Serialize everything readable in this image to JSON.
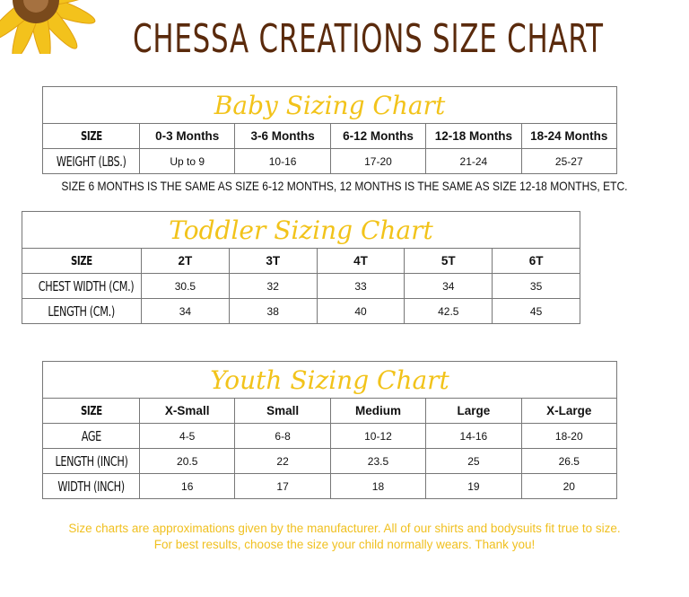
{
  "title": "CHESSA CREATIONS SIZE CHART",
  "tables": [
    {
      "caption": "Baby Sizing Chart",
      "rows": [
        [
          "SIZE",
          "0-3 Months",
          "3-6 Months",
          "6-12 Months",
          "12-18 Months",
          "18-24 Months"
        ],
        [
          "WEIGHT (LBS.)",
          "Up to 9",
          "10-16",
          "17-20",
          "21-24",
          "25-27"
        ]
      ]
    },
    {
      "caption": "Toddler Sizing Chart",
      "rows": [
        [
          "SIZE",
          "2T",
          "3T",
          "4T",
          "5T",
          "6T"
        ],
        [
          "CHEST WIDTH (CM.)",
          "30.5",
          "32",
          "33",
          "34",
          "35"
        ],
        [
          "LENGTH (CM.)",
          "34",
          "38",
          "40",
          "42.5",
          "45"
        ]
      ]
    },
    {
      "caption": "Youth Sizing Chart",
      "rows": [
        [
          "SIZE",
          "X-Small",
          "Small",
          "Medium",
          "Large",
          "X-Large"
        ],
        [
          "AGE",
          "4-5",
          "6-8",
          "10-12",
          "14-16",
          "18-20"
        ],
        [
          "LENGTH (INCH)",
          "20.5",
          "22",
          "23.5",
          "25",
          "26.5"
        ],
        [
          "WIDTH (INCH)",
          "16",
          "17",
          "18",
          "19",
          "20"
        ]
      ]
    }
  ],
  "note": "SIZE 6 MONTHS IS THE SAME AS SIZE 6-12 MONTHS, 12 MONTHS IS THE SAME AS SIZE 12-18 MONTHS, ETC.",
  "footer": [
    "Size charts are approximations given by the manufacturer. All of our shirts and bodysuits fit true to size.",
    "For best results, choose the size your child normally wears. Thank you!"
  ]
}
